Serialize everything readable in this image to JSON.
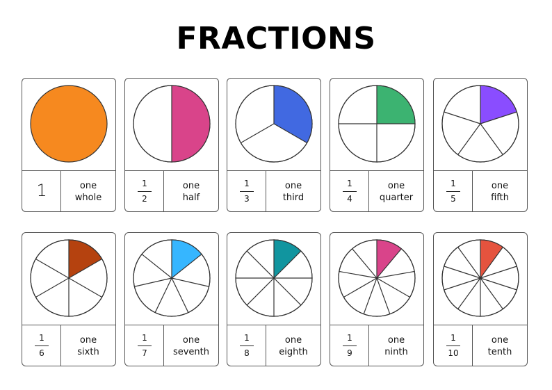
{
  "title": "FRACTIONS",
  "cards": [
    {
      "denominator": 1,
      "numerator": "1",
      "den_text": "",
      "word1": "one",
      "word2": "whole",
      "color": "#f6891f"
    },
    {
      "denominator": 2,
      "numerator": "1",
      "den_text": "2",
      "word1": "one",
      "word2": "half",
      "color": "#d9448a"
    },
    {
      "denominator": 3,
      "numerator": "1",
      "den_text": "3",
      "word1": "one",
      "word2": "third",
      "color": "#4169e1"
    },
    {
      "denominator": 4,
      "numerator": "1",
      "den_text": "4",
      "word1": "one",
      "word2": "quarter",
      "color": "#3cb371"
    },
    {
      "denominator": 5,
      "numerator": "1",
      "den_text": "5",
      "word1": "one",
      "word2": "fifth",
      "color": "#8a4dff"
    },
    {
      "denominator": 6,
      "numerator": "1",
      "den_text": "6",
      "word1": "one",
      "word2": "sixth",
      "color": "#b5420f"
    },
    {
      "denominator": 7,
      "numerator": "1",
      "den_text": "7",
      "word1": "one",
      "word2": "seventh",
      "color": "#36b6ff"
    },
    {
      "denominator": 8,
      "numerator": "1",
      "den_text": "8",
      "word1": "one",
      "word2": "eighth",
      "color": "#11959f"
    },
    {
      "denominator": 9,
      "numerator": "1",
      "den_text": "9",
      "word1": "one",
      "word2": "ninth",
      "color": "#d9448a"
    },
    {
      "denominator": 10,
      "numerator": "1",
      "den_text": "10",
      "word1": "one",
      "word2": "tenth",
      "color": "#e5533e"
    }
  ]
}
